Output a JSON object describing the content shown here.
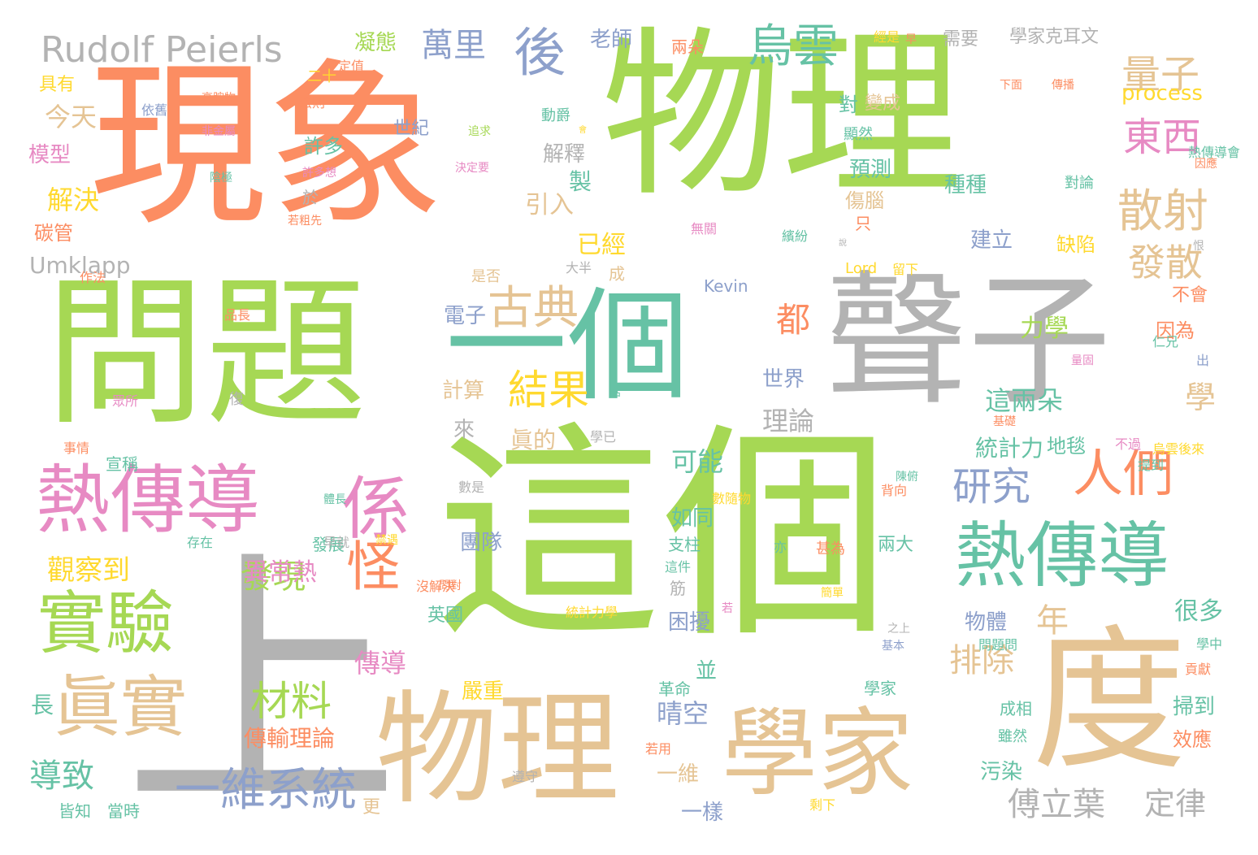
{
  "colors": {
    "orange": "#fc8d62",
    "green": "#a6d854",
    "teal": "#66c2a5",
    "gray": "#b3b3b3",
    "tan": "#e5c494",
    "pink": "#e78ac3",
    "blue": "#8da0cb",
    "yellow": "#ffd92f"
  },
  "words": [
    {
      "text": "現象",
      "color": "orange"
    },
    {
      "text": "物理",
      "color": "green"
    },
    {
      "text": "問題",
      "color": "green"
    },
    {
      "text": "一個",
      "color": "teal"
    },
    {
      "text": "聲子",
      "color": "gray"
    },
    {
      "text": "這個",
      "color": "green"
    },
    {
      "text": "上",
      "color": "gray"
    },
    {
      "text": "物理",
      "color": "tan"
    },
    {
      "text": "學家",
      "color": "tan"
    },
    {
      "text": "度",
      "color": "tan"
    },
    {
      "text": "熱傳導",
      "color": "pink"
    },
    {
      "text": "熱傳導",
      "color": "teal"
    },
    {
      "text": "係",
      "color": "pink"
    },
    {
      "text": "實驗",
      "color": "green"
    },
    {
      "text": "眞實",
      "color": "tan"
    },
    {
      "text": "Rudolf Peierls",
      "color": "gray"
    },
    {
      "text": "後",
      "color": "blue"
    },
    {
      "text": "烏雲",
      "color": "teal"
    },
    {
      "text": "古典",
      "color": "tan"
    },
    {
      "text": "結果",
      "color": "yellow"
    },
    {
      "text": "怪",
      "color": "orange"
    },
    {
      "text": "人們",
      "color": "orange"
    },
    {
      "text": "散射",
      "color": "tan"
    },
    {
      "text": "發散",
      "color": "tan"
    },
    {
      "text": "東西",
      "color": "pink"
    },
    {
      "text": "量子",
      "color": "tan"
    },
    {
      "text": "研究",
      "color": "blue"
    },
    {
      "text": "一維系統",
      "color": "blue"
    },
    {
      "text": "材料",
      "color": "green"
    },
    {
      "text": "排除",
      "color": "tan"
    },
    {
      "text": "傅立葉",
      "color": "gray"
    },
    {
      "text": "定律",
      "color": "gray"
    },
    {
      "text": "萬里",
      "color": "blue"
    },
    {
      "text": "老師",
      "color": "blue"
    },
    {
      "text": "凝態",
      "color": "green"
    },
    {
      "text": "Umklapp",
      "color": "gray"
    },
    {
      "text": "Kevin",
      "color": "blue"
    },
    {
      "text": "Lord",
      "color": "yellow"
    },
    {
      "text": "process",
      "color": "yellow"
    },
    {
      "text": "今天",
      "color": "tan"
    },
    {
      "text": "模型",
      "color": "pink"
    },
    {
      "text": "解決",
      "color": "yellow"
    },
    {
      "text": "碳管",
      "color": "orange"
    },
    {
      "text": "具有",
      "color": "yellow"
    },
    {
      "text": "觀察到",
      "color": "yellow"
    },
    {
      "text": "導致",
      "color": "teal"
    },
    {
      "text": "發現",
      "color": "green"
    },
    {
      "text": "異常熱",
      "color": "pink"
    },
    {
      "text": "傳導",
      "color": "pink"
    },
    {
      "text": "傳輸理論",
      "color": "orange"
    },
    {
      "text": "嚴重",
      "color": "yellow"
    },
    {
      "text": "電子",
      "color": "blue"
    },
    {
      "text": "計算",
      "color": "tan"
    },
    {
      "text": "來",
      "color": "gray"
    },
    {
      "text": "眞的",
      "color": "tan"
    },
    {
      "text": "都",
      "color": "orange"
    },
    {
      "text": "世界",
      "color": "blue"
    },
    {
      "text": "理論",
      "color": "gray"
    },
    {
      "text": "可能",
      "color": "teal"
    },
    {
      "text": "如同",
      "color": "teal"
    },
    {
      "text": "晴空",
      "color": "blue"
    },
    {
      "text": "困擾",
      "color": "blue"
    },
    {
      "text": "一維",
      "color": "tan"
    },
    {
      "text": "一樣",
      "color": "blue"
    },
    {
      "text": "已經",
      "color": "yellow"
    },
    {
      "text": "引入",
      "color": "tan"
    },
    {
      "text": "解釋",
      "color": "gray"
    },
    {
      "text": "許多",
      "color": "teal"
    },
    {
      "text": "世紀",
      "color": "blue"
    },
    {
      "text": "力學",
      "color": "green"
    },
    {
      "text": "這兩朵",
      "color": "teal"
    },
    {
      "text": "地毯",
      "color": "teal"
    },
    {
      "text": "學",
      "color": "tan"
    },
    {
      "text": "年",
      "color": "tan"
    },
    {
      "text": "很多",
      "color": "teal"
    },
    {
      "text": "因為",
      "color": "orange"
    },
    {
      "text": "不會",
      "color": "orange"
    },
    {
      "text": "統計力",
      "color": "teal"
    },
    {
      "text": "物體",
      "color": "blue"
    },
    {
      "text": "種種",
      "color": "teal"
    },
    {
      "text": "建立",
      "color": "blue"
    },
    {
      "text": "缺陷",
      "color": "yellow"
    },
    {
      "text": "預測",
      "color": "teal"
    },
    {
      "text": "對",
      "color": "teal"
    },
    {
      "text": "變成",
      "color": "tan"
    },
    {
      "text": "傷腦",
      "color": "tan"
    },
    {
      "text": "污染",
      "color": "teal"
    },
    {
      "text": "掃到",
      "color": "teal"
    },
    {
      "text": "效應",
      "color": "orange"
    },
    {
      "text": "成相",
      "color": "teal"
    },
    {
      "text": "二十",
      "color": "yellow"
    },
    {
      "text": "製",
      "color": "teal"
    },
    {
      "text": "動爵",
      "color": "teal"
    },
    {
      "text": "於",
      "color": "gray"
    },
    {
      "text": "並",
      "color": "teal"
    },
    {
      "text": "革命",
      "color": "teal"
    },
    {
      "text": "支柱",
      "color": "teal"
    },
    {
      "text": "團隊",
      "color": "blue"
    },
    {
      "text": "英國",
      "color": "teal"
    },
    {
      "text": "筋",
      "color": "gray"
    },
    {
      "text": "長",
      "color": "teal"
    },
    {
      "text": "宣稱",
      "color": "teal"
    },
    {
      "text": "更",
      "color": "tan"
    },
    {
      "text": "皆知",
      "color": "teal"
    },
    {
      "text": "當時",
      "color": "teal"
    },
    {
      "text": "發展",
      "color": "teal"
    },
    {
      "text": "兩朵",
      "color": "orange"
    },
    {
      "text": "剩下",
      "color": "yellow"
    },
    {
      "text": "需要",
      "color": "gray"
    },
    {
      "text": "學家克耳文",
      "color": "gray"
    },
    {
      "text": "經是",
      "color": "yellow"
    },
    {
      "text": "法則",
      "color": "orange"
    },
    {
      "text": "依舊",
      "color": "blue"
    },
    {
      "text": "定值",
      "color": "orange"
    },
    {
      "text": "是否",
      "color": "tan"
    },
    {
      "text": "不過",
      "color": "pink"
    },
    {
      "text": "仁兄",
      "color": "teal"
    },
    {
      "text": "烏雲後來",
      "color": "yellow"
    },
    {
      "text": "事情",
      "color": "orange"
    },
    {
      "text": "存在",
      "color": "teal"
    },
    {
      "text": "只",
      "color": "orange"
    },
    {
      "text": "出",
      "color": "blue"
    },
    {
      "text": "成",
      "color": "tan"
    },
    {
      "text": "復",
      "color": "gray"
    },
    {
      "text": "學家",
      "color": "teal"
    },
    {
      "text": "基本",
      "color": "blue"
    },
    {
      "text": "大半",
      "color": "gray"
    },
    {
      "text": "留下",
      "color": "yellow"
    },
    {
      "text": "雖然",
      "color": "teal"
    },
    {
      "text": "兩大",
      "color": "teal"
    },
    {
      "text": "甚為",
      "color": "orange"
    },
    {
      "text": "背向",
      "color": "orange"
    },
    {
      "text": "統計力學",
      "color": "yellow"
    },
    {
      "text": "數隨物",
      "color": "yellow"
    },
    {
      "text": "貢獻",
      "color": "orange"
    },
    {
      "text": "學中",
      "color": "teal"
    },
    {
      "text": "問題問",
      "color": "teal"
    },
    {
      "text": "遵守",
      "color": "gray"
    },
    {
      "text": "若用",
      "color": "orange"
    },
    {
      "text": "無關",
      "color": "pink"
    },
    {
      "text": "繽紛",
      "color": "teal"
    },
    {
      "text": "熱傳導會",
      "color": "teal"
    },
    {
      "text": "對論",
      "color": "teal"
    },
    {
      "text": "顯然",
      "color": "teal"
    },
    {
      "text": "下面",
      "color": "orange"
    },
    {
      "text": "傳播",
      "color": "orange"
    },
    {
      "text": "因應",
      "color": "orange"
    },
    {
      "text": "提到",
      "color": "teal"
    },
    {
      "text": "基礎",
      "color": "orange"
    },
    {
      "text": "數是",
      "color": "gray"
    },
    {
      "text": "作法",
      "color": "orange"
    },
    {
      "text": "品長",
      "color": "orange"
    },
    {
      "text": "早就",
      "color": "gray"
    },
    {
      "text": "沒解決",
      "color": "orange"
    },
    {
      "text": "禁遇",
      "color": "yellow"
    },
    {
      "text": "若",
      "color": "pink"
    },
    {
      "text": "之上",
      "color": "gray"
    },
    {
      "text": "這件",
      "color": "teal"
    },
    {
      "text": "亦",
      "color": "teal"
    },
    {
      "text": "眾所",
      "color": "pink"
    },
    {
      "text": "高胺物",
      "color": "orange"
    },
    {
      "text": "非金屬",
      "color": "pink"
    },
    {
      "text": "陰極",
      "color": "teal"
    },
    {
      "text": "許多想",
      "color": "pink"
    },
    {
      "text": "若粗先",
      "color": "orange"
    },
    {
      "text": "追求",
      "color": "green"
    },
    {
      "text": "決定要",
      "color": "pink"
    },
    {
      "text": "學已",
      "color": "gray"
    },
    {
      "text": "話",
      "color": "teal"
    },
    {
      "text": "問對",
      "color": "orange"
    },
    {
      "text": "體長",
      "color": "teal"
    },
    {
      "text": "簡單",
      "color": "yellow"
    },
    {
      "text": "陳俯",
      "color": "teal"
    },
    {
      "text": "早",
      "color": "orange"
    },
    {
      "text": "恨",
      "color": "gray"
    },
    {
      "text": "會",
      "color": "yellow"
    },
    {
      "text": "說",
      "color": "gray"
    },
    {
      "text": "量固",
      "color": "pink"
    }
  ]
}
